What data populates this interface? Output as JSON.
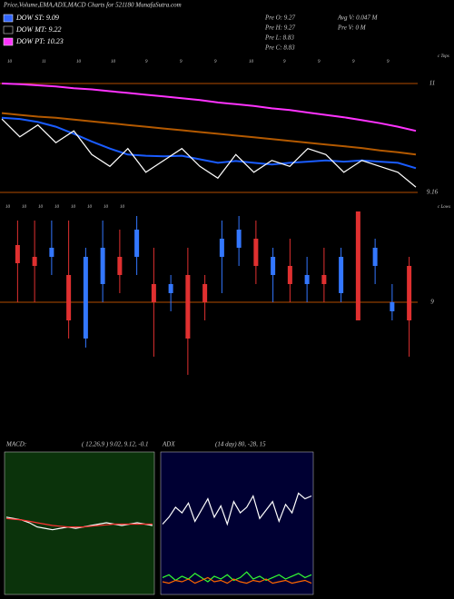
{
  "header": {
    "title": "Price,Volume,EMA,ADX,MACD Charts for 521180 MunafaSutra.com"
  },
  "legend": [
    {
      "label": "DOW ST: 9.09",
      "color": "#3366ff"
    },
    {
      "label": "DOW MT: 9.22",
      "color": "#000000"
    },
    {
      "label": "DOW PT: 10.23",
      "color": "#ff33ff"
    }
  ],
  "info": [
    "Pre  O: 9.27",
    "Pre  H: 9.27",
    "Pre  L: 8.83",
    "Pre  C: 8.83",
    "Avg V: 0.047 M",
    "Pre  V: 0  M"
  ],
  "chart_data": [
    {
      "type": "line",
      "name": "c Tops",
      "ylim": [
        11.0,
        9.16
      ],
      "yticks": [
        11,
        {
          "value": 9.16,
          "label": "9.16"
        }
      ],
      "grid": true,
      "grid_color": "#b34d00",
      "top_labels": [
        "10",
        "11",
        "10",
        "10",
        "9",
        "9",
        "9",
        "10",
        "9",
        "9",
        "9",
        "9"
      ],
      "series": [
        {
          "name": "EMA long",
          "color": "#ff33ff",
          "values": [
            11.0,
            10.99,
            10.97,
            10.95,
            10.92,
            10.9,
            10.87,
            10.84,
            10.81,
            10.78,
            10.75,
            10.72,
            10.68,
            10.65,
            10.62,
            10.58,
            10.55,
            10.51,
            10.47,
            10.43,
            10.38,
            10.33,
            10.27,
            10.2
          ]
        },
        {
          "name": "EMA mid",
          "color": "#b35900",
          "values": [
            10.5,
            10.47,
            10.44,
            10.42,
            10.39,
            10.36,
            10.33,
            10.3,
            10.27,
            10.24,
            10.21,
            10.18,
            10.15,
            10.12,
            10.09,
            10.06,
            10.03,
            10.0,
            9.97,
            9.94,
            9.91,
            9.87,
            9.84,
            9.8
          ]
        },
        {
          "name": "EMA short",
          "color": "#1a5cff",
          "values": [
            10.42,
            10.4,
            10.35,
            10.27,
            10.15,
            10.02,
            9.9,
            9.8,
            9.78,
            9.77,
            9.78,
            9.72,
            9.66,
            9.69,
            9.66,
            9.63,
            9.66,
            9.68,
            9.7,
            9.68,
            9.7,
            9.68,
            9.66,
            9.57
          ]
        },
        {
          "name": "Price",
          "color": "#ffffff",
          "values": [
            10.4,
            10.1,
            10.3,
            10.0,
            10.2,
            9.8,
            9.6,
            9.9,
            9.5,
            9.7,
            9.9,
            9.6,
            9.4,
            9.8,
            9.5,
            9.7,
            9.6,
            9.9,
            9.8,
            9.5,
            9.7,
            9.6,
            9.5,
            9.25
          ]
        }
      ]
    },
    {
      "type": "candlestick",
      "name": "c Lows",
      "ylim": [
        10.0,
        8.2
      ],
      "yticks": [
        9
      ],
      "grid": true,
      "grid_color": "#b34d00",
      "up_color": "#3377ff",
      "down_color": "#e03030",
      "low_labels": [
        "10",
        "10",
        "10",
        "10",
        "10",
        "10",
        "10",
        "10"
      ],
      "open": [
        9.63,
        9.5,
        9.5,
        9.3,
        8.6,
        9.2,
        9.5,
        9.5,
        9.2,
        9.1,
        9.3,
        9.2,
        9.5,
        9.6,
        9.7,
        9.3,
        9.4,
        9.2,
        9.3,
        9.1,
        10.0,
        9.4,
        8.9,
        9.4
      ],
      "high": [
        9.9,
        9.9,
        9.9,
        9.9,
        9.6,
        9.9,
        9.8,
        9.95,
        9.6,
        9.3,
        9.6,
        9.3,
        9.9,
        9.95,
        9.9,
        9.6,
        9.7,
        9.5,
        9.6,
        9.6,
        10.0,
        9.7,
        9.2,
        9.5
      ],
      "low": [
        9.0,
        9.0,
        9.3,
        8.6,
        8.5,
        9.0,
        9.1,
        9.3,
        8.4,
        8.9,
        8.2,
        8.8,
        9.1,
        9.4,
        9.2,
        9.0,
        9.0,
        9.0,
        9.0,
        9.0,
        8.8,
        9.2,
        8.8,
        8.4
      ],
      "close": [
        9.43,
        9.4,
        9.6,
        8.8,
        9.5,
        9.6,
        9.3,
        9.8,
        9.0,
        9.2,
        8.6,
        9.0,
        9.7,
        9.8,
        9.4,
        9.5,
        9.2,
        9.3,
        9.2,
        9.5,
        8.8,
        9.6,
        9.0,
        8.8
      ]
    },
    {
      "type": "line",
      "title": "MACD:",
      "subtitle": "( 12,26,9 ) 9.02, 9.12, -0.1",
      "background": "#0b330b",
      "ylim": [
        5,
        -5
      ],
      "series": [
        {
          "name": "MACD",
          "color": "#ffffff",
          "values": [
            0.5,
            0.4,
            0.3,
            0.1,
            -0.2,
            -0.3,
            -0.4,
            -0.3,
            -0.2,
            -0.3,
            -0.2,
            -0.1,
            0,
            0.1,
            0,
            -0.1,
            0,
            0.1,
            0,
            -0.1
          ]
        },
        {
          "name": "Signal",
          "color": "#ff3333",
          "values": [
            0.4,
            0.35,
            0.3,
            0.2,
            0.1,
            0,
            -0.1,
            -0.15,
            -0.2,
            -0.2,
            -0.2,
            -0.15,
            -0.1,
            -0.05,
            0,
            0,
            0,
            0,
            0,
            0
          ]
        }
      ]
    },
    {
      "type": "line",
      "title": "ADX",
      "subtitle": "(14  day) 80,  -28,  15",
      "background": "#000033",
      "ylim": [
        100,
        0
      ],
      "series": [
        {
          "name": "ADX",
          "color": "#ffffff",
          "values": [
            50,
            55,
            62,
            58,
            65,
            52,
            60,
            68,
            55,
            63,
            50,
            66,
            58,
            62,
            70,
            54,
            60,
            66,
            52,
            64,
            58,
            72,
            68,
            70
          ]
        },
        {
          "name": "+DI",
          "color": "#33ff33",
          "values": [
            12,
            14,
            10,
            13,
            11,
            15,
            12,
            9,
            13,
            11,
            14,
            10,
            12,
            16,
            11,
            13,
            10,
            12,
            14,
            11,
            13,
            15,
            12,
            14
          ]
        },
        {
          "name": "-DI",
          "color": "#ff6600",
          "values": [
            9,
            8,
            10,
            9,
            11,
            8,
            10,
            12,
            9,
            10,
            8,
            11,
            9,
            8,
            10,
            9,
            11,
            8,
            9,
            10,
            8,
            9,
            10,
            8
          ]
        }
      ]
    }
  ]
}
